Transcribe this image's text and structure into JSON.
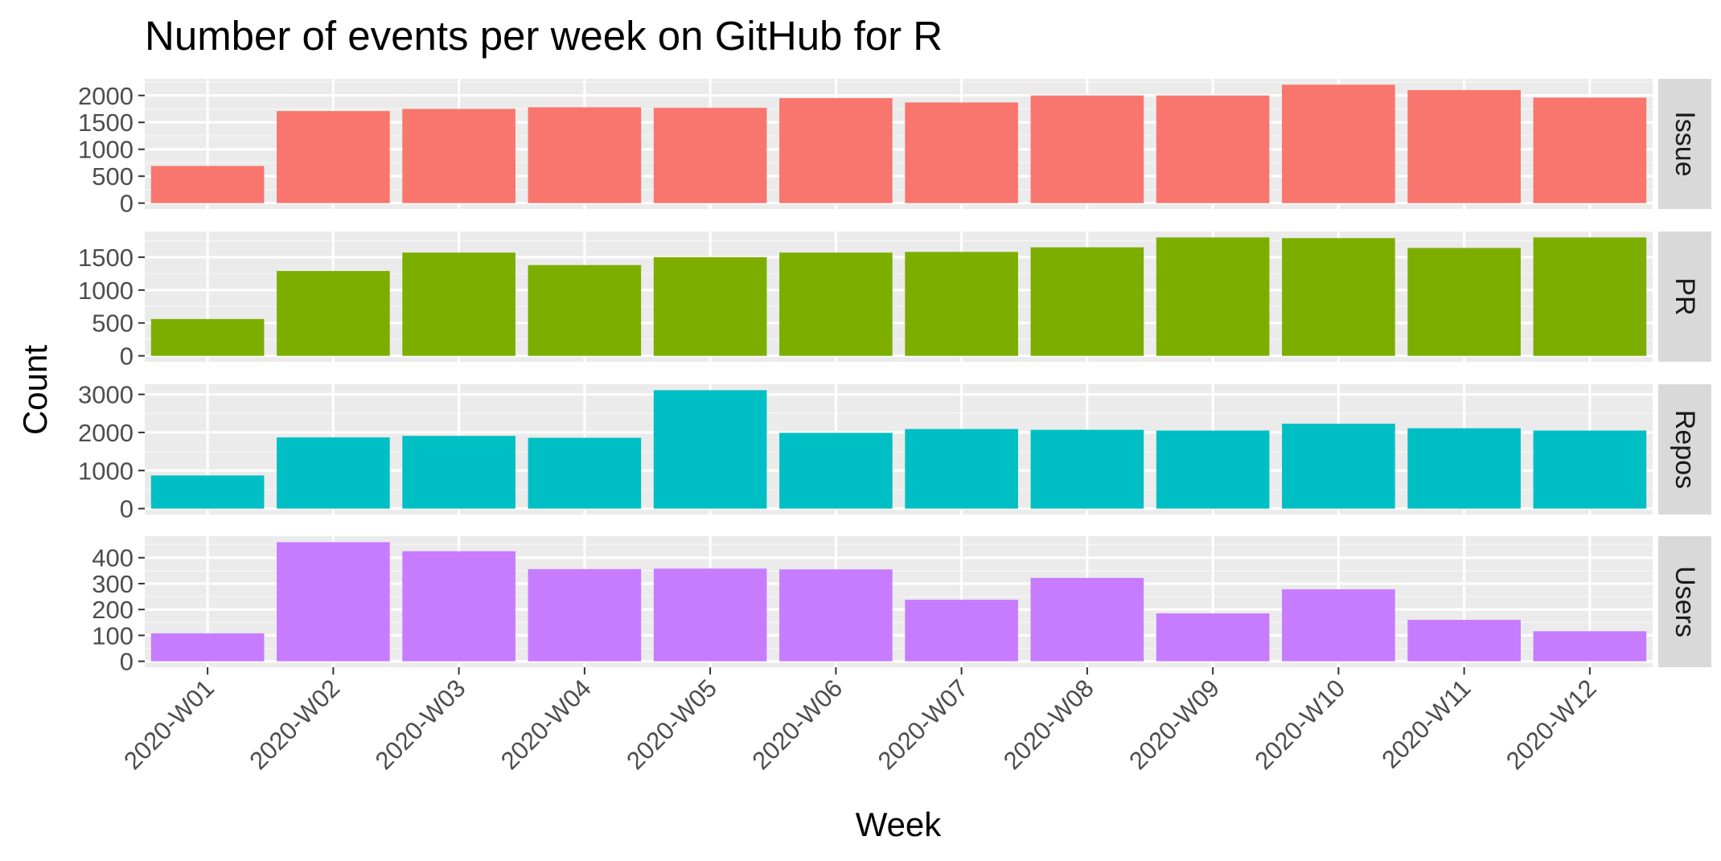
{
  "chart_data": {
    "type": "bar",
    "title": "Number of events per week on GitHub for R",
    "xlabel": "Week",
    "ylabel": "Count",
    "categories": [
      "2020-W01",
      "2020-W02",
      "2020-W03",
      "2020-W04",
      "2020-W05",
      "2020-W06",
      "2020-W07",
      "2020-W08",
      "2020-W09",
      "2020-W10",
      "2020-W11",
      "2020-W12"
    ],
    "facets": [
      {
        "name": "Issue",
        "color": "#F8766D",
        "values": [
          690,
          1710,
          1750,
          1780,
          1770,
          1950,
          1870,
          2000,
          2000,
          2200,
          2100,
          1960
        ],
        "ylim": [
          0,
          2200
        ],
        "yticks": [
          0,
          500,
          1000,
          1500,
          2000
        ]
      },
      {
        "name": "PR",
        "color": "#7CAE00",
        "values": [
          560,
          1290,
          1570,
          1380,
          1500,
          1570,
          1580,
          1650,
          1800,
          1790,
          1640,
          1800
        ],
        "ylim": [
          0,
          1800
        ],
        "yticks": [
          0,
          500,
          1000,
          1500
        ]
      },
      {
        "name": "Repos",
        "color": "#00BFC4",
        "values": [
          870,
          1870,
          1910,
          1860,
          3110,
          1990,
          2090,
          2070,
          2050,
          2230,
          2110,
          2050
        ],
        "ylim": [
          0,
          3110
        ],
        "yticks": [
          0,
          1000,
          2000,
          3000
        ]
      },
      {
        "name": "Users",
        "color": "#C77CFF",
        "values": [
          108,
          460,
          425,
          356,
          358,
          355,
          238,
          322,
          185,
          278,
          160,
          116
        ],
        "ylim": [
          0,
          460
        ],
        "yticks": [
          0,
          100,
          200,
          300,
          400
        ]
      }
    ],
    "grid": true,
    "legend": "none"
  }
}
